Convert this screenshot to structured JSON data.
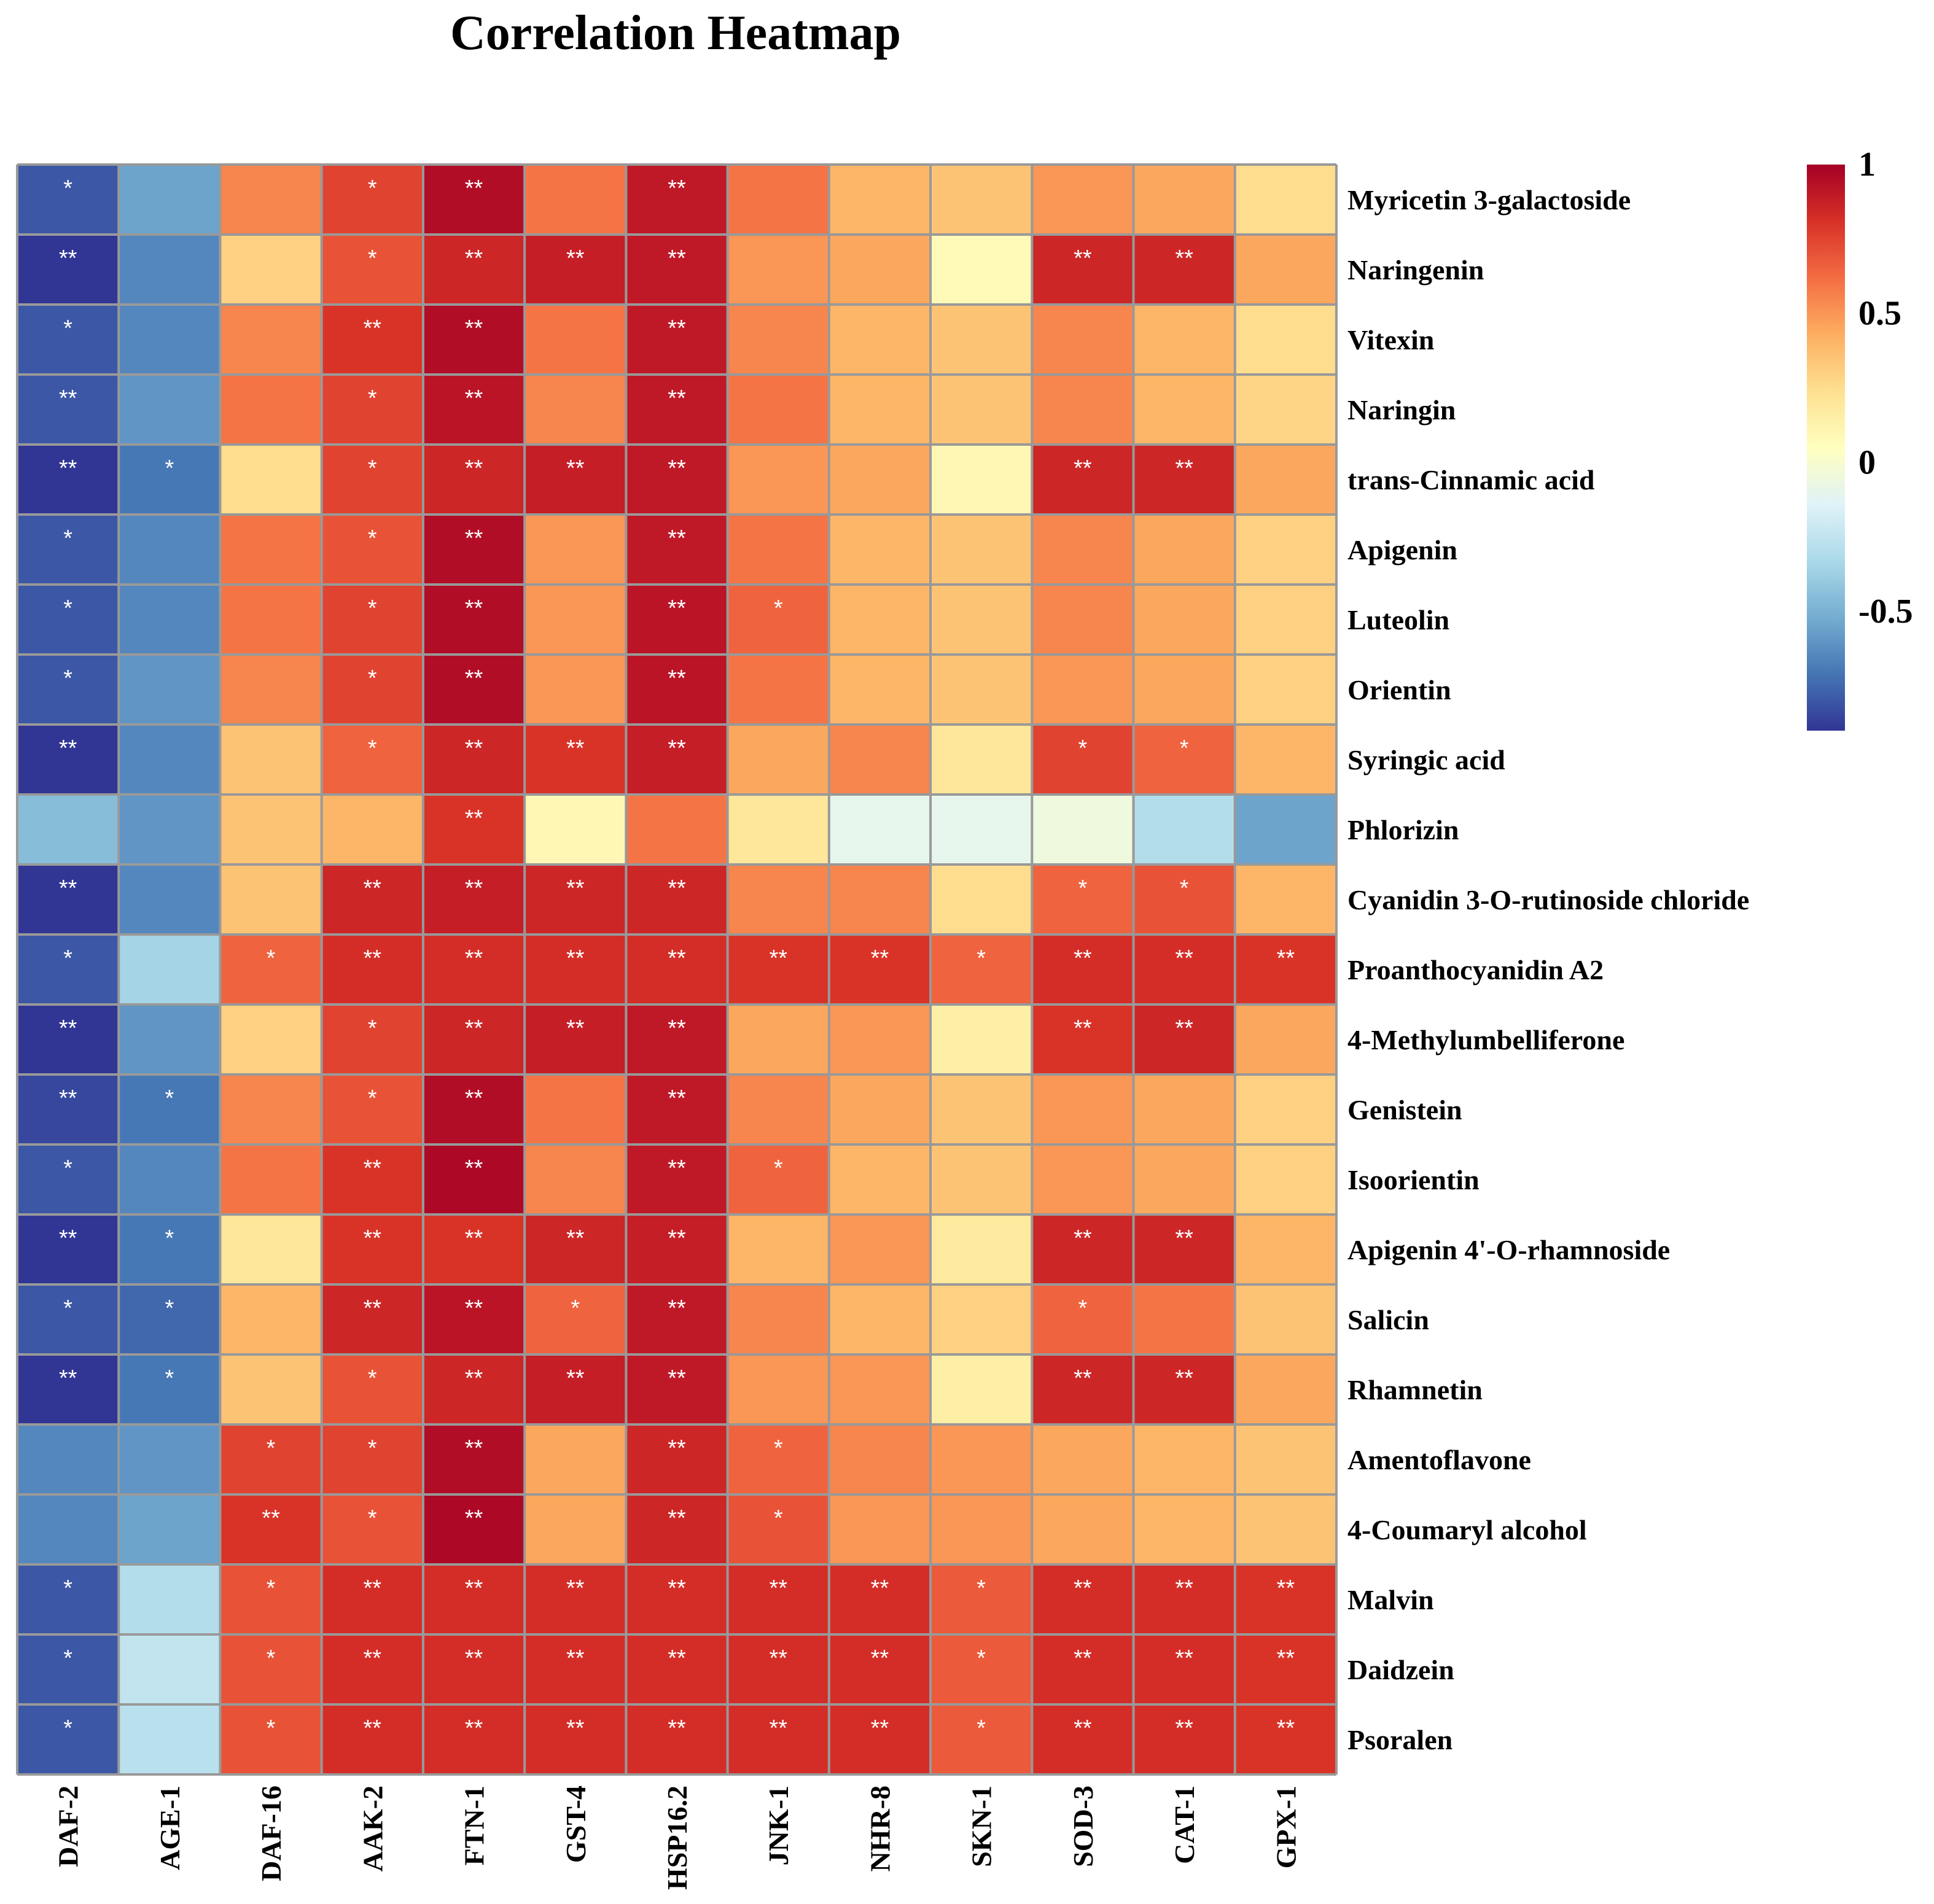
{
  "chart_data": {
    "type": "heatmap",
    "title": "Correlation Heatmap",
    "columns": [
      "DAF-2",
      "AGE-1",
      "DAF-16",
      "AAK-2",
      "FTN-1",
      "GST-4",
      "HSP16.2",
      "JNK-1",
      "NHR-8",
      "SKN-1",
      "SOD-3",
      "CAT-1",
      "GPX-1"
    ],
    "rows": [
      "Myricetin 3-galactoside",
      "Naringenin",
      "Vitexin",
      "Naringin",
      "trans-Cinnamic acid",
      "Apigenin",
      "Luteolin",
      "Orientin",
      "Syringic acid",
      "Phlorizin",
      "Cyanidin 3-O-rutinoside chloride",
      "Proanthocyanidin A2",
      "4-Methylumbelliferone",
      "Genistein",
      "Isoorientin",
      "Apigenin 4'-O-rhamnoside",
      "Salicin",
      "Rhamnetin",
      "Amentoflavone",
      "4-Coumaryl alcohol",
      "Malvin",
      "Daidzein",
      "Psoralen"
    ],
    "values": [
      [
        -0.8,
        -0.55,
        0.55,
        0.75,
        0.95,
        0.6,
        0.9,
        0.6,
        0.4,
        0.35,
        0.5,
        0.45,
        0.25
      ],
      [
        -0.95,
        -0.65,
        0.3,
        0.7,
        0.85,
        0.88,
        0.9,
        0.5,
        0.45,
        0.08,
        0.85,
        0.85,
        0.45
      ],
      [
        -0.8,
        -0.65,
        0.55,
        0.8,
        0.95,
        0.6,
        0.9,
        0.55,
        0.4,
        0.35,
        0.55,
        0.4,
        0.25
      ],
      [
        -0.8,
        -0.6,
        0.6,
        0.75,
        0.92,
        0.55,
        0.9,
        0.6,
        0.4,
        0.35,
        0.55,
        0.4,
        0.28
      ],
      [
        -0.95,
        -0.7,
        0.25,
        0.75,
        0.85,
        0.88,
        0.9,
        0.5,
        0.45,
        0.1,
        0.85,
        0.85,
        0.45
      ],
      [
        -0.8,
        -0.65,
        0.6,
        0.7,
        0.95,
        0.5,
        0.9,
        0.6,
        0.4,
        0.35,
        0.55,
        0.45,
        0.3
      ],
      [
        -0.8,
        -0.65,
        0.6,
        0.75,
        0.95,
        0.5,
        0.92,
        0.65,
        0.4,
        0.35,
        0.55,
        0.45,
        0.3
      ],
      [
        -0.8,
        -0.6,
        0.55,
        0.75,
        0.95,
        0.5,
        0.92,
        0.6,
        0.4,
        0.35,
        0.5,
        0.45,
        0.3
      ],
      [
        -0.95,
        -0.65,
        0.35,
        0.65,
        0.85,
        0.8,
        0.88,
        0.45,
        0.55,
        0.2,
        0.75,
        0.65,
        0.4
      ],
      [
        -0.45,
        -0.6,
        0.35,
        0.4,
        0.8,
        0.1,
        0.6,
        0.2,
        -0.1,
        -0.1,
        -0.05,
        -0.3,
        -0.55
      ],
      [
        -0.95,
        -0.65,
        0.35,
        0.85,
        0.88,
        0.85,
        0.85,
        0.55,
        0.55,
        0.25,
        0.65,
        0.7,
        0.4
      ],
      [
        -0.8,
        -0.35,
        0.65,
        0.82,
        0.82,
        0.82,
        0.82,
        0.8,
        0.8,
        0.65,
        0.82,
        0.82,
        0.8
      ],
      [
        -0.95,
        -0.6,
        0.3,
        0.75,
        0.85,
        0.88,
        0.9,
        0.45,
        0.5,
        0.15,
        0.8,
        0.85,
        0.45
      ],
      [
        -0.85,
        -0.7,
        0.55,
        0.7,
        0.95,
        0.6,
        0.9,
        0.55,
        0.45,
        0.35,
        0.5,
        0.45,
        0.3
      ],
      [
        -0.8,
        -0.65,
        0.6,
        0.8,
        0.97,
        0.55,
        0.9,
        0.65,
        0.4,
        0.35,
        0.5,
        0.45,
        0.3
      ],
      [
        -0.95,
        -0.7,
        0.2,
        0.8,
        0.8,
        0.85,
        0.88,
        0.4,
        0.5,
        0.18,
        0.85,
        0.85,
        0.4
      ],
      [
        -0.8,
        -0.75,
        0.4,
        0.85,
        0.92,
        0.65,
        0.9,
        0.55,
        0.4,
        0.3,
        0.65,
        0.6,
        0.35
      ],
      [
        -0.95,
        -0.7,
        0.35,
        0.7,
        0.85,
        0.88,
        0.9,
        0.5,
        0.5,
        0.15,
        0.85,
        0.85,
        0.45
      ],
      [
        -0.65,
        -0.6,
        0.75,
        0.75,
        0.95,
        0.45,
        0.85,
        0.65,
        0.55,
        0.5,
        0.45,
        0.4,
        0.35
      ],
      [
        -0.65,
        -0.55,
        0.8,
        0.7,
        0.97,
        0.45,
        0.85,
        0.7,
        0.5,
        0.5,
        0.45,
        0.4,
        0.35
      ],
      [
        -0.8,
        -0.3,
        0.7,
        0.82,
        0.82,
        0.82,
        0.82,
        0.82,
        0.82,
        0.68,
        0.82,
        0.82,
        0.8
      ],
      [
        -0.8,
        -0.25,
        0.7,
        0.82,
        0.82,
        0.82,
        0.82,
        0.82,
        0.82,
        0.68,
        0.82,
        0.82,
        0.8
      ],
      [
        -0.8,
        -0.28,
        0.7,
        0.82,
        0.82,
        0.82,
        0.82,
        0.82,
        0.82,
        0.68,
        0.82,
        0.82,
        0.8
      ]
    ],
    "significance": [
      [
        "*",
        "",
        "",
        "*",
        "**",
        "",
        "**",
        "",
        "",
        "",
        "",
        "",
        ""
      ],
      [
        "**",
        "",
        "",
        "*",
        "**",
        "**",
        "**",
        "",
        "",
        "",
        "**",
        "**",
        ""
      ],
      [
        "*",
        "",
        "",
        "**",
        "**",
        "",
        "**",
        "",
        "",
        "",
        "",
        "",
        ""
      ],
      [
        "**",
        "",
        "",
        "*",
        "**",
        "",
        "**",
        "",
        "",
        "",
        "",
        "",
        ""
      ],
      [
        "**",
        "*",
        "",
        "*",
        "**",
        "**",
        "**",
        "",
        "",
        "",
        "**",
        "**",
        ""
      ],
      [
        "*",
        "",
        "",
        "*",
        "**",
        "",
        "**",
        "",
        "",
        "",
        "",
        "",
        ""
      ],
      [
        "*",
        "",
        "",
        "*",
        "**",
        "",
        "**",
        "*",
        "",
        "",
        "",
        "",
        ""
      ],
      [
        "*",
        "",
        "",
        "*",
        "**",
        "",
        "**",
        "",
        "",
        "",
        "",
        "",
        ""
      ],
      [
        "**",
        "",
        "",
        "*",
        "**",
        "**",
        "**",
        "",
        "",
        "",
        "*",
        "*",
        ""
      ],
      [
        "",
        "",
        "",
        "",
        "**",
        "",
        "",
        "",
        "",
        "",
        "",
        "",
        ""
      ],
      [
        "**",
        "",
        "",
        "**",
        "**",
        "**",
        "**",
        "",
        "",
        "",
        "*",
        "*",
        ""
      ],
      [
        "*",
        "",
        "*",
        "**",
        "**",
        "**",
        "**",
        "**",
        "**",
        "*",
        "**",
        "**",
        "**"
      ],
      [
        "**",
        "",
        "",
        "*",
        "**",
        "**",
        "**",
        "",
        "",
        "",
        "**",
        "**",
        ""
      ],
      [
        "**",
        "*",
        "",
        "*",
        "**",
        "",
        "**",
        "",
        "",
        "",
        "",
        "",
        ""
      ],
      [
        "*",
        "",
        "",
        "**",
        "**",
        "",
        "**",
        "*",
        "",
        "",
        "",
        "",
        ""
      ],
      [
        "**",
        "*",
        "",
        "**",
        "**",
        "**",
        "**",
        "",
        "",
        "",
        "**",
        "**",
        ""
      ],
      [
        "*",
        "*",
        "",
        "**",
        "**",
        "*",
        "**",
        "",
        "",
        "",
        "*",
        "",
        ""
      ],
      [
        "**",
        "*",
        "",
        "*",
        "**",
        "**",
        "**",
        "",
        "",
        "",
        "**",
        "**",
        ""
      ],
      [
        "",
        "",
        "*",
        "*",
        "**",
        "",
        "**",
        "*",
        "",
        "",
        "",
        "",
        ""
      ],
      [
        "",
        "",
        "**",
        "*",
        "**",
        "",
        "**",
        "*",
        "",
        "",
        "",
        "",
        ""
      ],
      [
        "*",
        "",
        "*",
        "**",
        "**",
        "**",
        "**",
        "**",
        "**",
        "*",
        "**",
        "**",
        "**"
      ],
      [
        "*",
        "",
        "*",
        "**",
        "**",
        "**",
        "**",
        "**",
        "**",
        "*",
        "**",
        "**",
        "**"
      ],
      [
        "*",
        "",
        "*",
        "**",
        "**",
        "**",
        "**",
        "**",
        "**",
        "*",
        "**",
        "**",
        "**"
      ]
    ],
    "colorbar": {
      "min": -0.9,
      "max": 1,
      "ticks": [
        1,
        0.5,
        0,
        -0.5
      ],
      "tick_labels": [
        "1",
        "0.5",
        "0",
        "-0.5"
      ]
    },
    "color_scale": [
      "#313695",
      "#4575b4",
      "#74add1",
      "#abd9e9",
      "#e0f3f8",
      "#ffffbf",
      "#fee090",
      "#fdae61",
      "#f46d43",
      "#d73027",
      "#a50026"
    ],
    "grid_color": "#999999",
    "legend_position": "right"
  }
}
